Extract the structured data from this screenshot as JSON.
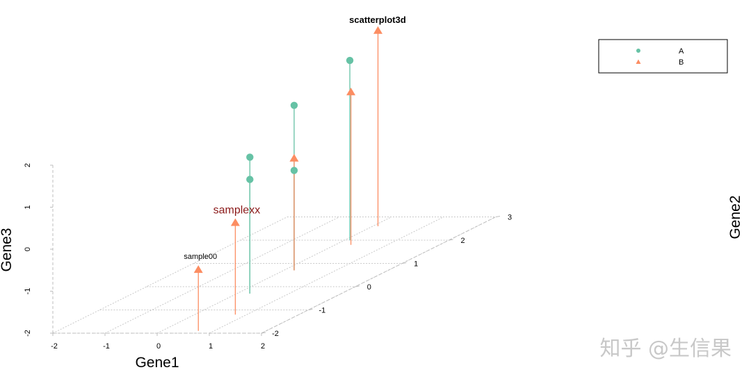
{
  "chart_data": {
    "type": "scatter3d",
    "title": "scatterplot3d",
    "xlabel": "Gene1",
    "ylabel": "Gene2",
    "zlabel": "Gene3",
    "xlim": [
      -2,
      2
    ],
    "ylim": [
      -2,
      3
    ],
    "zlim": [
      -2,
      2
    ],
    "x_ticks": [
      "-2",
      "-1",
      "0",
      "1",
      "2"
    ],
    "y_ticks": [
      "-2",
      "-1",
      "0",
      "1",
      "2",
      "3"
    ],
    "z_ticks": [
      "-2",
      "-1",
      "0",
      "1",
      "2"
    ],
    "grid": true,
    "type_h_lines": true,
    "legend": {
      "position": "top-right",
      "entries": [
        {
          "label": "A",
          "shape": "circle",
          "color": "#66c2a5"
        },
        {
          "label": "B",
          "shape": "triangle",
          "color": "#fc8d62"
        }
      ]
    },
    "series": [
      {
        "name": "A",
        "color": "#66c2a5",
        "shape": "circle",
        "points": [
          {
            "x": 0.25,
            "y": -0.3,
            "z": 1.25
          },
          {
            "x": 0.25,
            "y": -0.3,
            "z": 0.72
          },
          {
            "x": 0.2,
            "y": 0.7,
            "z": 1.93
          },
          {
            "x": 0.2,
            "y": 0.7,
            "z": 0.38
          },
          {
            "x": 0.1,
            "y": 2.0,
            "z": 2.28
          }
        ]
      },
      {
        "name": "B",
        "color": "#fc8d62",
        "shape": "triangle",
        "points": [
          {
            "x": 0.7,
            "y": -1.9,
            "z": -0.55,
            "label": "sample00"
          },
          {
            "x": 0.78,
            "y": -1.2,
            "z": 0.18,
            "label": "samplexx"
          },
          {
            "x": 0.2,
            "y": 0.7,
            "z": 0.66
          },
          {
            "x": 0.3,
            "y": 1.8,
            "z": 1.63
          },
          {
            "x": 0.1,
            "y": 2.6,
            "z": 2.65
          }
        ]
      }
    ]
  },
  "point_label_colors": {
    "sample00": "#000000",
    "samplexx": "#8b1a1a"
  },
  "watermark": "知乎 @生信果"
}
